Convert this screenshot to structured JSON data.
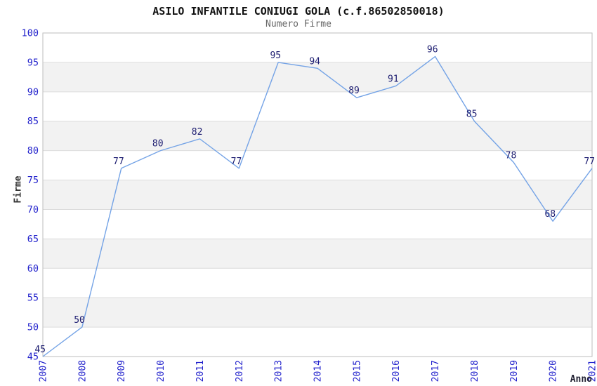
{
  "chart_data": {
    "type": "line",
    "title": "ASILO INFANTILE CONIUGI GOLA (c.f.86502850018)",
    "subtitle": "Numero Firme",
    "xlabel": "Anno",
    "ylabel": "Firme",
    "categories": [
      "2007",
      "2008",
      "2009",
      "2010",
      "2011",
      "2012",
      "2013",
      "2014",
      "2015",
      "2016",
      "2017",
      "2018",
      "2019",
      "2020",
      "2021"
    ],
    "values": [
      45,
      50,
      77,
      80,
      82,
      77,
      95,
      94,
      89,
      91,
      96,
      85,
      78,
      68,
      77
    ],
    "ylim": [
      45,
      100
    ],
    "ytick_step": 5,
    "grid": true,
    "legend": "none",
    "colors": {
      "line": "#74a3e6",
      "band": "#f2f2f2",
      "gridline": "#dcdcdc",
      "plot_border": "#bdbdbd",
      "tick_label": "#2222cc",
      "value_label": "#1c1c70",
      "title": "#111111",
      "subtitle": "#666666"
    }
  }
}
